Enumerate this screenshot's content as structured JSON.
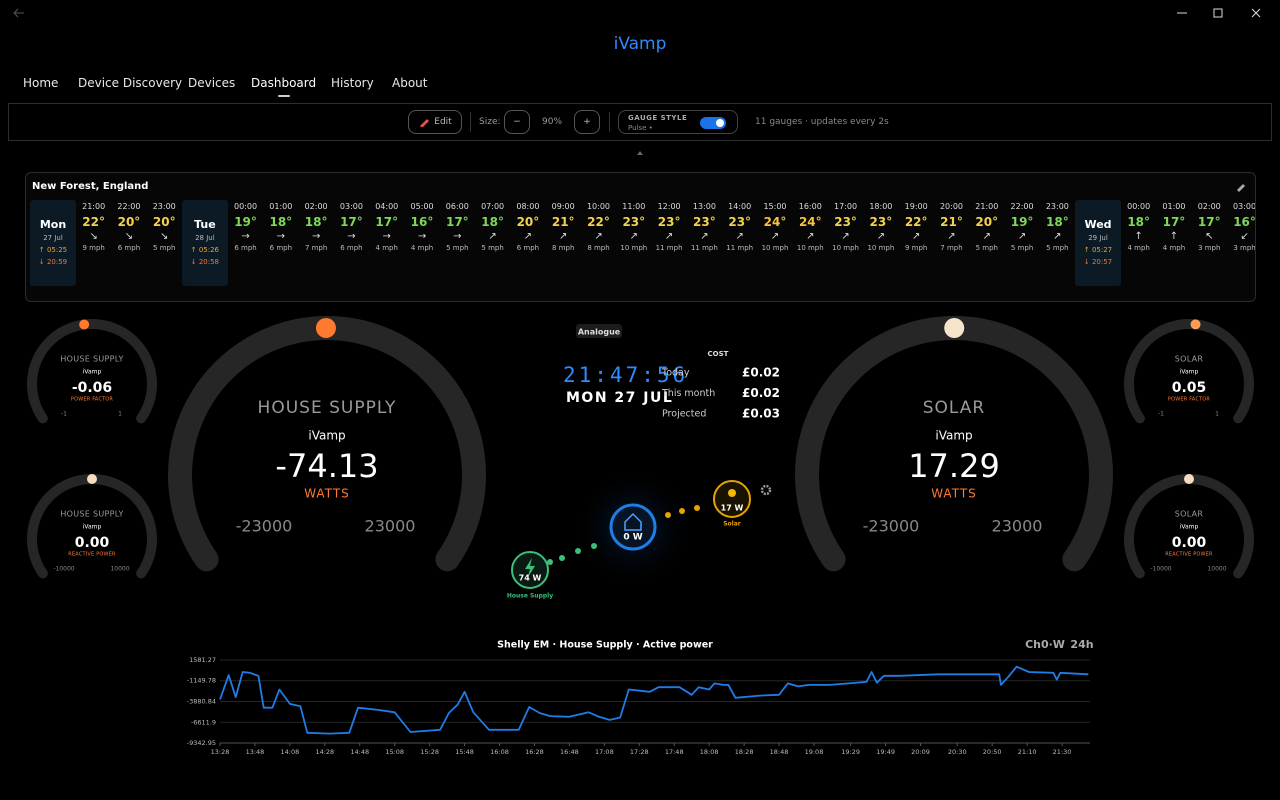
{
  "app": {
    "title": "iVamp"
  },
  "nav": {
    "items": [
      "Home",
      "Device Discovery",
      "Devices",
      "Dashboard",
      "History",
      "About"
    ],
    "active": 3
  },
  "toolbar": {
    "edit": "Edit",
    "size_label": "Size:",
    "minus": "−",
    "size": "90%",
    "plus": "+",
    "gauge_style": "GAUGE STYLE",
    "style_value": "Pulse •",
    "status": "11 gauges · updates every 2s"
  },
  "weather": {
    "location": "New Forest, England",
    "days": [
      {
        "day": "Mon",
        "date": "27 Jul",
        "sunrise": "↑ 05:25",
        "sunset": "↓ 20:59",
        "hours": [
          {
            "time": "21:00",
            "icon": "moon",
            "temp": "22°",
            "arrow": "↘",
            "wind": "9 mph"
          },
          {
            "time": "22:00",
            "icon": "cloud",
            "temp": "20°",
            "arrow": "↘",
            "wind": "6 mph"
          },
          {
            "time": "23:00",
            "icon": "moon",
            "temp": "20°",
            "arrow": "↘",
            "wind": "5 mph"
          }
        ]
      },
      {
        "day": "Tue",
        "date": "28 Jul",
        "sunrise": "↑ 05:26",
        "sunset": "↓ 20:58",
        "hours": [
          {
            "time": "00:00",
            "icon": "cloud",
            "temp": "19°",
            "arrow": "→",
            "wind": "6 mph"
          },
          {
            "time": "01:00",
            "icon": "moon",
            "temp": "18°",
            "arrow": "→",
            "wind": "6 mph"
          },
          {
            "time": "02:00",
            "icon": "moon",
            "temp": "18°",
            "arrow": "→",
            "wind": "7 mph"
          },
          {
            "time": "03:00",
            "icon": "moon",
            "temp": "17°",
            "arrow": "→",
            "wind": "6 mph"
          },
          {
            "time": "04:00",
            "icon": "moon",
            "temp": "17°",
            "arrow": "→",
            "wind": "4 mph"
          },
          {
            "time": "05:00",
            "icon": "cloud",
            "temp": "16°",
            "arrow": "→",
            "wind": "4 mph"
          },
          {
            "time": "06:00",
            "icon": "partly",
            "temp": "17°",
            "arrow": "→",
            "wind": "5 mph"
          },
          {
            "time": "07:00",
            "icon": "partly",
            "temp": "18°",
            "arrow": "↗",
            "wind": "5 mph"
          },
          {
            "time": "08:00",
            "icon": "partly",
            "temp": "20°",
            "arrow": "↗",
            "wind": "6 mph"
          },
          {
            "time": "09:00",
            "icon": "partly",
            "temp": "21°",
            "arrow": "↗",
            "wind": "8 mph"
          },
          {
            "time": "10:00",
            "icon": "partly",
            "temp": "22°",
            "arrow": "↗",
            "wind": "8 mph"
          },
          {
            "time": "11:00",
            "icon": "cloud",
            "temp": "23°",
            "arrow": "↗",
            "wind": "10 mph"
          },
          {
            "time": "12:00",
            "icon": "sun",
            "temp": "23°",
            "arrow": "↗",
            "wind": "11 mph"
          },
          {
            "time": "13:00",
            "icon": "partly",
            "temp": "23°",
            "arrow": "↗",
            "wind": "11 mph"
          },
          {
            "time": "14:00",
            "icon": "partly",
            "temp": "23°",
            "arrow": "↗",
            "wind": "11 mph"
          },
          {
            "time": "15:00",
            "icon": "partly",
            "temp": "24°",
            "arrow": "↗",
            "wind": "10 mph"
          },
          {
            "time": "16:00",
            "icon": "partly",
            "temp": "24°",
            "arrow": "↗",
            "wind": "10 mph"
          },
          {
            "time": "17:00",
            "icon": "sun",
            "temp": "23°",
            "arrow": "↗",
            "wind": "10 mph"
          },
          {
            "time": "18:00",
            "icon": "sun",
            "temp": "23°",
            "arrow": "↗",
            "wind": "10 mph"
          },
          {
            "time": "19:00",
            "icon": "sun",
            "temp": "22°",
            "arrow": "↗",
            "wind": "9 mph"
          },
          {
            "time": "20:00",
            "icon": "sun",
            "temp": "21°",
            "arrow": "↗",
            "wind": "7 mph"
          },
          {
            "time": "21:00",
            "icon": "moon",
            "temp": "20°",
            "arrow": "↗",
            "wind": "5 mph"
          },
          {
            "time": "22:00",
            "icon": "moon",
            "temp": "19°",
            "arrow": "↗",
            "wind": "5 mph"
          },
          {
            "time": "23:00",
            "icon": "moon",
            "temp": "18°",
            "arrow": "↗",
            "wind": "5 mph"
          }
        ]
      },
      {
        "day": "Wed",
        "date": "29 Jul",
        "sunrise": "↑ 05:27",
        "sunset": "↓ 20:57",
        "hours": [
          {
            "time": "00:00",
            "icon": "moon",
            "temp": "18°",
            "arrow": "↑",
            "wind": "4 mph"
          },
          {
            "time": "01:00",
            "icon": "moon",
            "temp": "17°",
            "arrow": "↑",
            "wind": "4 mph"
          },
          {
            "time": "02:00",
            "icon": "moon",
            "temp": "17°",
            "arrow": "↖",
            "wind": "3 mph"
          },
          {
            "time": "03:00",
            "icon": "fog",
            "temp": "16°",
            "arrow": "↙",
            "wind": "3 mph"
          }
        ]
      }
    ]
  },
  "gauges": [
    {
      "title": "HOUSE SUPPLY",
      "source": "iVamp",
      "reading": -0.06,
      "unit": "POWER FACTOR",
      "min": -1,
      "max": 1,
      "size": "small",
      "marker_color": "#ff7a2f"
    },
    {
      "title": "HOUSE SUPPLY",
      "source": "iVamp",
      "reading": {
        "value": 0,
        "label": "0.00"
      },
      "unit": "REACTIVE POWER",
      "min": -10000,
      "max": 10000,
      "size": "small",
      "marker_color": "#f8dcc0"
    },
    {
      "title": "HOUSE SUPPLY",
      "source": "iVamp",
      "reading": -74.13,
      "unit": "WATTS",
      "min": -23000,
      "max": 23000,
      "size": "large",
      "marker_color": "#ff7a2f"
    },
    {
      "title": "SOLAR",
      "source": "iVamp",
      "reading": 17.29,
      "unit": "WATTS",
      "min": -23000,
      "max": 23000,
      "size": "large",
      "marker_color": "#f5e3cc"
    },
    {
      "title": "SOLAR",
      "source": "iVamp",
      "reading": 0.05,
      "unit": "POWER FACTOR",
      "min": -1,
      "max": 1,
      "size": "small",
      "marker_color": "#ff9a55"
    },
    {
      "title": "SOLAR",
      "source": "iVamp",
      "reading": {
        "value": 0,
        "label": "0.00"
      },
      "unit": "REACTIVE POWER",
      "min": -10000,
      "max": 10000,
      "size": "small",
      "marker_color": "#f8dcc0"
    }
  ],
  "center": {
    "mode": "Analogue",
    "time": "21:47:56",
    "date": "MON 27 JUL",
    "cost": {
      "title": "COST",
      "rows": [
        [
          "Today",
          "£0.02"
        ],
        [
          "This month",
          "£0.02"
        ],
        [
          "Projected",
          "£0.03"
        ]
      ]
    }
  },
  "flow": {
    "grid": {
      "value": "74 W",
      "label": "House Supply"
    },
    "home": {
      "value": "0 W"
    },
    "solar": {
      "value": "17 W",
      "label": "Solar"
    }
  },
  "chart_data": {
    "type": "line",
    "title": "Shelly EM · House Supply · Active power",
    "channel": "Ch0·W",
    "range": "24h",
    "color": "#1f7de6",
    "grid": true,
    "x": [
      "13:28",
      "13:33",
      "13:37",
      "13:41",
      "13:45",
      "13:50",
      "13:53",
      "13:58",
      "14:02",
      "14:08",
      "14:14",
      "14:18",
      "14:31",
      "14:42",
      "14:47",
      "14:59",
      "15:08",
      "15:17",
      "15:34",
      "15:39",
      "15:44",
      "15:48",
      "15:53",
      "16:02",
      "16:19",
      "16:25",
      "16:31",
      "16:37",
      "16:48",
      "16:59",
      "17:05",
      "17:11",
      "17:17",
      "17:22",
      "17:34",
      "17:39",
      "17:51",
      "17:58",
      "18:02",
      "18:08",
      "18:11",
      "18:16",
      "18:19",
      "18:23",
      "18:37",
      "18:48",
      "18:53",
      "18:59",
      "19:05",
      "19:17",
      "19:28",
      "19:38",
      "19:41",
      "19:44",
      "19:48",
      "19:57",
      "20:19",
      "20:54",
      "20:55",
      "20:59",
      "21:04",
      "21:11",
      "21:25",
      "21:27",
      "21:29",
      "21:45"
    ],
    "values": [
      -3600,
      -400,
      -3300,
      0,
      -100,
      -500,
      -4700,
      -4700,
      -2300,
      -4200,
      -4500,
      -8000,
      -8100,
      -8000,
      -4700,
      -5000,
      -5300,
      -7900,
      -7600,
      -5400,
      -4300,
      -2600,
      -5300,
      -7600,
      -7600,
      -4600,
      -5400,
      -5800,
      -5900,
      -5300,
      -5900,
      -6300,
      -6000,
      -2300,
      -2600,
      -2000,
      -2000,
      -3000,
      -2000,
      -2300,
      -1500,
      -1700,
      -1700,
      -3400,
      -3100,
      -3000,
      -1500,
      -1900,
      -1700,
      -1700,
      -1500,
      -1300,
      0,
      -1400,
      -500,
      -500,
      -300,
      -300,
      -1700,
      -700,
      700,
      0,
      -100,
      -1000,
      -100,
      -300
    ],
    "xlim": [
      "13:28",
      "21:46"
    ],
    "xticks": [
      "13:28",
      "13:48",
      "14:08",
      "14:28",
      "14:48",
      "15:08",
      "15:28",
      "15:48",
      "16:08",
      "16:28",
      "16:48",
      "17:08",
      "17:28",
      "17:48",
      "18:08",
      "18:28",
      "18:48",
      "19:08",
      "19:29",
      "19:49",
      "20:09",
      "20:30",
      "20:50",
      "21:10",
      "21:30"
    ],
    "ylim": [
      -9342.95,
      1581.27
    ],
    "yticks": [
      1581.27,
      -1149.78,
      -3880.84,
      -6611.9,
      -9342.95
    ]
  }
}
